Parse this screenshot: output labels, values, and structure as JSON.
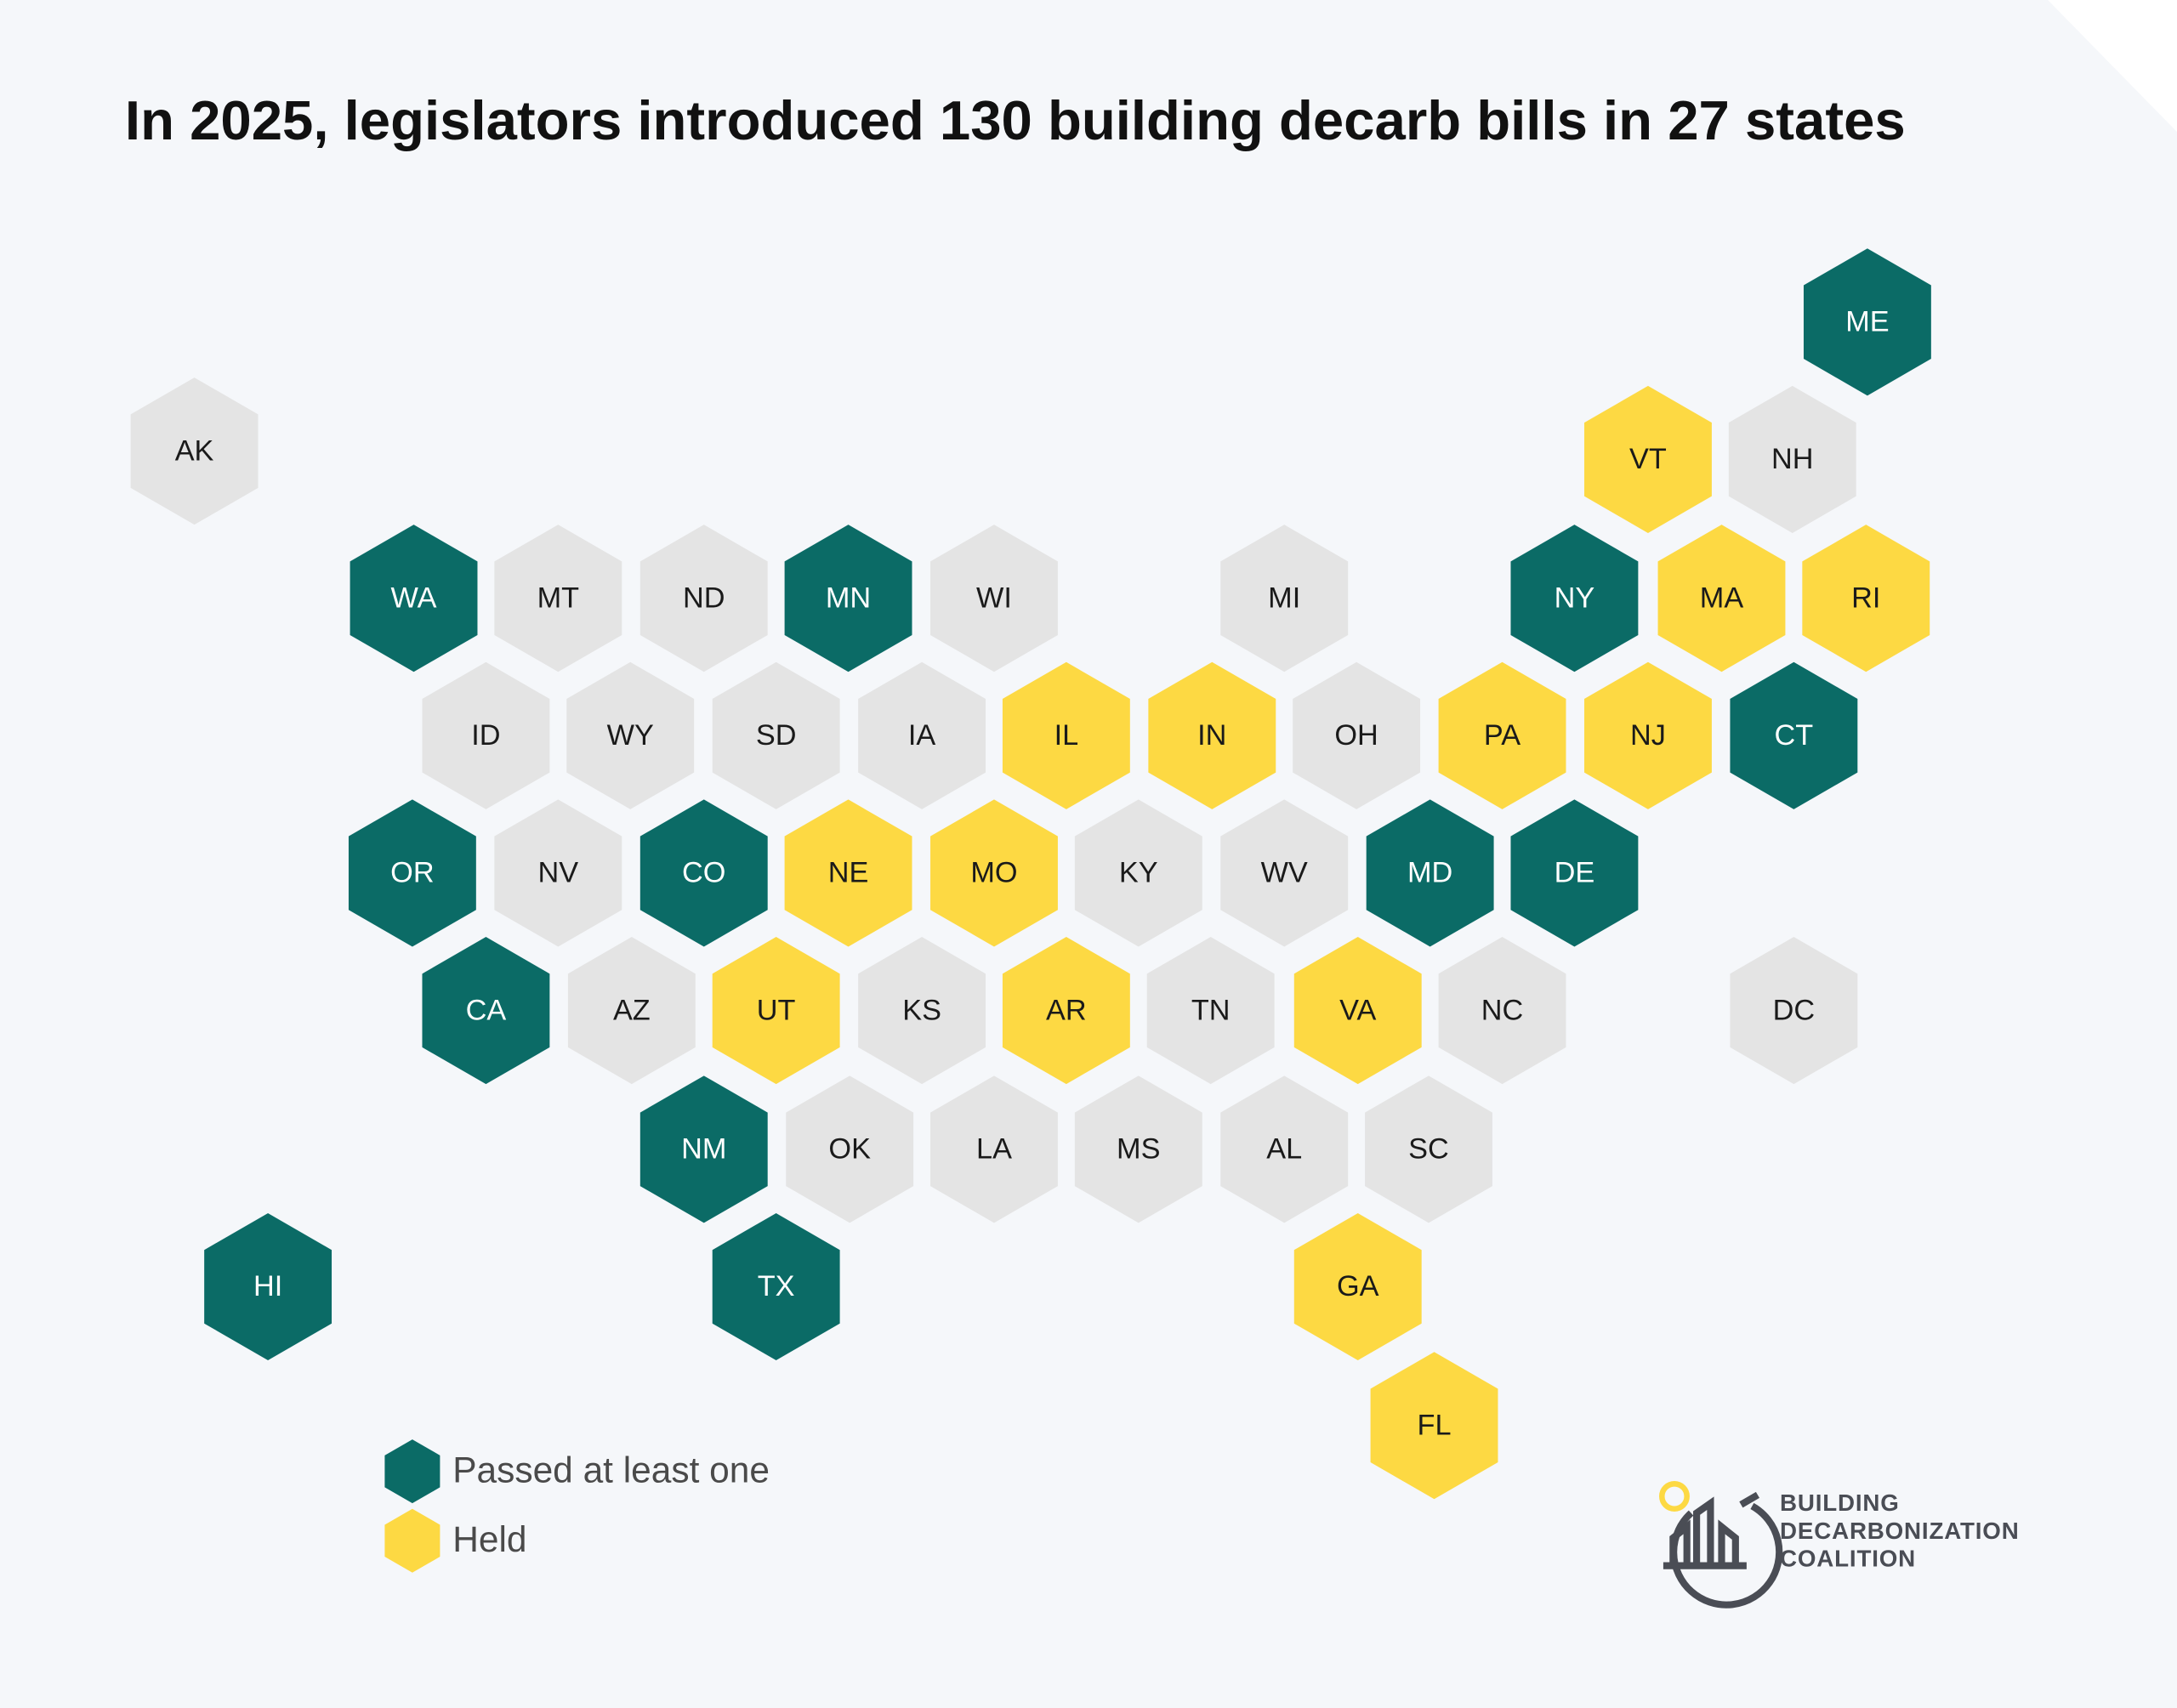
{
  "title": "In 2025, legislators introduced 130 building decarb bills in 27 states",
  "states": [
    {
      "label": "AK",
      "color": "#e4e4e4"
    },
    {
      "label": "ME",
      "color": "#0b6b66"
    },
    {
      "label": "VT",
      "color": "#fdd943"
    },
    {
      "label": "NH",
      "color": "#e4e4e4"
    },
    {
      "label": "WA",
      "color": "#0b6b66"
    },
    {
      "label": "MT",
      "color": "#e4e4e4"
    },
    {
      "label": "ND",
      "color": "#e4e4e4"
    },
    {
      "label": "MN",
      "color": "#0b6b66"
    },
    {
      "label": "WI",
      "color": "#e4e4e4"
    },
    {
      "label": "MI",
      "color": "#e4e4e4"
    },
    {
      "label": "NY",
      "color": "#0b6b66"
    },
    {
      "label": "MA",
      "color": "#fdd943"
    },
    {
      "label": "RI",
      "color": "#fdd943"
    },
    {
      "label": "ID",
      "color": "#e4e4e4"
    },
    {
      "label": "WY",
      "color": "#e4e4e4"
    },
    {
      "label": "SD",
      "color": "#e4e4e4"
    },
    {
      "label": "IA",
      "color": "#e4e4e4"
    },
    {
      "label": "IL",
      "color": "#fdd943"
    },
    {
      "label": "IN",
      "color": "#fdd943"
    },
    {
      "label": "OH",
      "color": "#e4e4e4"
    },
    {
      "label": "PA",
      "color": "#fdd943"
    },
    {
      "label": "NJ",
      "color": "#fdd943"
    },
    {
      "label": "CT",
      "color": "#0b6b66"
    },
    {
      "label": "OR",
      "color": "#0b6b66"
    },
    {
      "label": "NV",
      "color": "#e4e4e4"
    },
    {
      "label": "CO",
      "color": "#0b6b66"
    },
    {
      "label": "NE",
      "color": "#fdd943"
    },
    {
      "label": "MO",
      "color": "#fdd943"
    },
    {
      "label": "KY",
      "color": "#e4e4e4"
    },
    {
      "label": "WV",
      "color": "#e4e4e4"
    },
    {
      "label": "MD",
      "color": "#0b6b66"
    },
    {
      "label": "DE",
      "color": "#0b6b66"
    },
    {
      "label": "CA",
      "color": "#0b6b66"
    },
    {
      "label": "AZ",
      "color": "#e4e4e4"
    },
    {
      "label": "UT",
      "color": "#fdd943"
    },
    {
      "label": "KS",
      "color": "#e4e4e4"
    },
    {
      "label": "AR",
      "color": "#fdd943"
    },
    {
      "label": "TN",
      "color": "#e4e4e4"
    },
    {
      "label": "VA",
      "color": "#fdd943"
    },
    {
      "label": "NC",
      "color": "#e4e4e4"
    },
    {
      "label": "DC",
      "color": "#e4e4e4"
    },
    {
      "label": "NM",
      "color": "#0b6b66"
    },
    {
      "label": "OK",
      "color": "#e4e4e4"
    },
    {
      "label": "LA",
      "color": "#e4e4e4"
    },
    {
      "label": "MS",
      "color": "#e4e4e4"
    },
    {
      "label": "AL",
      "color": "#e4e4e4"
    },
    {
      "label": "SC",
      "color": "#e4e4e4"
    },
    {
      "label": "HI",
      "color": "#0b6b66"
    },
    {
      "label": "TX",
      "color": "#0b6b66"
    },
    {
      "label": "GA",
      "color": "#fdd943"
    },
    {
      "label": "FL",
      "color": "#fdd943"
    }
  ],
  "legend": [
    {
      "label": "Passed at least one",
      "color": "#0b6b66"
    },
    {
      "label": "Held",
      "color": "#fdd943"
    }
  ],
  "logo": {
    "lines": [
      "BUILDING",
      "DECARBONIZATION",
      "COALITION"
    ]
  }
}
